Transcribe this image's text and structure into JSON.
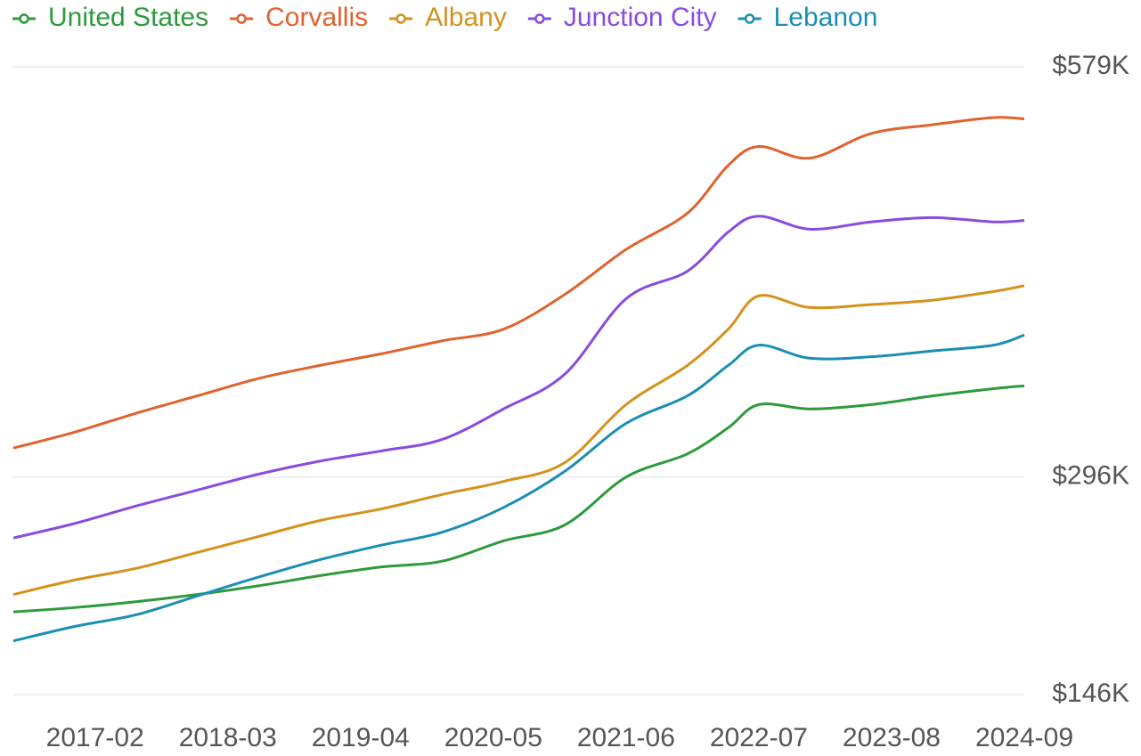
{
  "chart_data": {
    "type": "line",
    "x": [
      "2016-06",
      "2016-12",
      "2017-06",
      "2017-12",
      "2018-06",
      "2018-12",
      "2019-06",
      "2019-12",
      "2020-06",
      "2020-12",
      "2021-06",
      "2021-12",
      "2022-04",
      "2022-07",
      "2022-12",
      "2023-06",
      "2023-12",
      "2024-06",
      "2024-09"
    ],
    "xlim": [
      "2016-06",
      "2024-09"
    ],
    "xticks": [
      "2017-02",
      "2018-03",
      "2019-04",
      "2020-05",
      "2021-06",
      "2022-07",
      "2023-08",
      "2024-09"
    ],
    "ylim": [
      146000,
      579000
    ],
    "yticks": [
      {
        "value": 146000,
        "label": "$146K"
      },
      {
        "value": 296000,
        "label": "$296K"
      },
      {
        "value": 579000,
        "label": "$579K"
      }
    ],
    "grid": true,
    "legend": "top",
    "series": [
      {
        "name": "United States",
        "color": "#2e9a3c",
        "values": [
          203000,
          206000,
          210000,
          215000,
          221000,
          228000,
          234000,
          238000,
          252000,
          263000,
          296000,
          312000,
          330000,
          346000,
          343000,
          346000,
          352000,
          357000,
          359000
        ]
      },
      {
        "name": "Corvallis",
        "color": "#e0622e",
        "values": [
          316000,
          327000,
          340000,
          352000,
          364000,
          373000,
          381000,
          390000,
          398000,
          422000,
          453000,
          478000,
          511000,
          524000,
          516000,
          533000,
          539000,
          544000,
          543000
        ]
      },
      {
        "name": "Albany",
        "color": "#d4921c",
        "values": [
          215000,
          225000,
          233000,
          244000,
          255000,
          266000,
          274000,
          284000,
          293000,
          306000,
          346000,
          373000,
          398000,
          421000,
          413000,
          415000,
          418000,
          424000,
          428000
        ]
      },
      {
        "name": "Junction City",
        "color": "#8a4be0",
        "values": [
          254000,
          264000,
          276000,
          287000,
          298000,
          307000,
          314000,
          322000,
          343000,
          367000,
          419000,
          438000,
          465000,
          476000,
          467000,
          472000,
          475000,
          472000,
          473000
        ]
      },
      {
        "name": "Lebanon",
        "color": "#1a8fb2",
        "values": [
          183000,
          193000,
          201000,
          214000,
          227000,
          239000,
          249000,
          258000,
          275000,
          300000,
          333000,
          352000,
          373000,
          387000,
          378000,
          379000,
          383000,
          387000,
          394000
        ]
      }
    ]
  }
}
